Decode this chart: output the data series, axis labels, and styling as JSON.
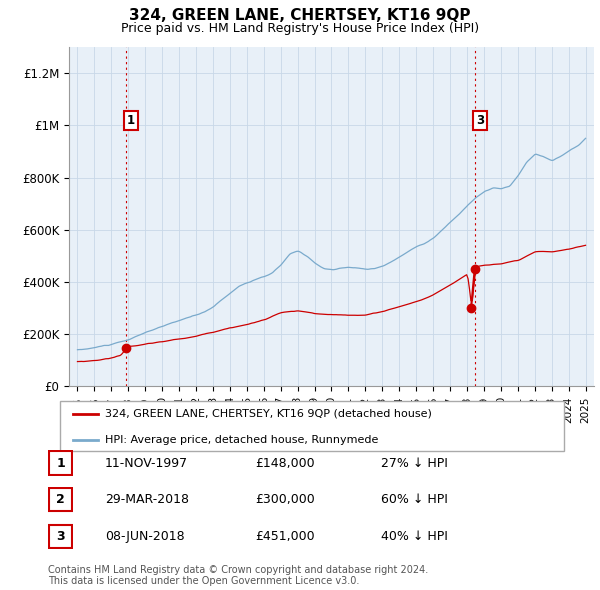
{
  "title": "324, GREEN LANE, CHERTSEY, KT16 9QP",
  "subtitle": "Price paid vs. HM Land Registry's House Price Index (HPI)",
  "legend_line1": "324, GREEN LANE, CHERTSEY, KT16 9QP (detached house)",
  "legend_line2": "HPI: Average price, detached house, Runnymede",
  "footer1": "Contains HM Land Registry data © Crown copyright and database right 2024.",
  "footer2": "This data is licensed under the Open Government Licence v3.0.",
  "table": [
    {
      "num": "1",
      "date": "11-NOV-1997",
      "price": "£148,000",
      "note": "27% ↓ HPI"
    },
    {
      "num": "2",
      "date": "29-MAR-2018",
      "price": "£300,000",
      "note": "60% ↓ HPI"
    },
    {
      "num": "3",
      "date": "08-JUN-2018",
      "price": "£451,000",
      "note": "40% ↓ HPI"
    }
  ],
  "sale_points": [
    {
      "year": 1997.87,
      "price": 148000,
      "label": "1"
    },
    {
      "year": 2018.24,
      "price": 300000,
      "label": "2"
    },
    {
      "year": 2018.46,
      "price": 451000,
      "label": "3"
    }
  ],
  "red_line_color": "#cc0000",
  "blue_line_color": "#7aaacc",
  "bg_color": "#e8f0f8",
  "sale_dot_color": "#cc0000",
  "grid_color": "#c8d8e8",
  "dashed_color": "#cc0000",
  "ylim": [
    0,
    1300000
  ],
  "yticks": [
    0,
    200000,
    400000,
    600000,
    800000,
    1000000,
    1200000
  ],
  "ytick_labels": [
    "£0",
    "£200K",
    "£400K",
    "£600K",
    "£800K",
    "£1M",
    "£1.2M"
  ],
  "xlim_start": 1994.5,
  "xlim_end": 2025.5,
  "hpi_anchor_years": [
    1995.0,
    1995.5,
    1996.0,
    1996.5,
    1997.0,
    1997.5,
    1998.0,
    1998.5,
    1999.0,
    1999.5,
    2000.0,
    2000.5,
    2001.0,
    2001.5,
    2002.0,
    2002.5,
    2003.0,
    2003.5,
    2004.0,
    2004.5,
    2005.0,
    2005.5,
    2006.0,
    2006.5,
    2007.0,
    2007.5,
    2008.0,
    2008.5,
    2009.0,
    2009.5,
    2010.0,
    2010.5,
    2011.0,
    2011.5,
    2012.0,
    2012.5,
    2013.0,
    2013.5,
    2014.0,
    2014.5,
    2015.0,
    2015.5,
    2016.0,
    2016.5,
    2017.0,
    2017.5,
    2018.0,
    2018.5,
    2019.0,
    2019.5,
    2020.0,
    2020.5,
    2021.0,
    2021.5,
    2022.0,
    2022.5,
    2023.0,
    2023.5,
    2024.0,
    2024.5,
    2025.0
  ],
  "hpi_anchor_vals": [
    140000,
    143000,
    148000,
    155000,
    160000,
    168000,
    175000,
    190000,
    205000,
    215000,
    225000,
    238000,
    248000,
    258000,
    268000,
    282000,
    300000,
    330000,
    355000,
    380000,
    395000,
    405000,
    415000,
    430000,
    460000,
    500000,
    510000,
    490000,
    465000,
    445000,
    440000,
    445000,
    448000,
    445000,
    440000,
    445000,
    455000,
    470000,
    490000,
    510000,
    530000,
    545000,
    565000,
    595000,
    625000,
    655000,
    690000,
    720000,
    740000,
    755000,
    750000,
    760000,
    800000,
    850000,
    880000,
    870000,
    855000,
    870000,
    890000,
    910000,
    940000
  ],
  "prop_anchor_years": [
    1995.0,
    1995.5,
    1996.0,
    1996.5,
    1997.0,
    1997.5,
    1997.87,
    1998.0,
    1999.0,
    2000.0,
    2001.0,
    2002.0,
    2003.0,
    2004.0,
    2005.0,
    2006.0,
    2007.0,
    2008.0,
    2009.0,
    2010.0,
    2011.0,
    2012.0,
    2013.0,
    2014.0,
    2015.0,
    2016.0,
    2017.0,
    2018.0,
    2018.24,
    2018.46,
    2018.6,
    2019.0,
    2020.0,
    2021.0,
    2022.0,
    2023.0,
    2024.0,
    2025.0
  ],
  "prop_anchor_vals": [
    95000,
    97000,
    100000,
    105000,
    110000,
    120000,
    148000,
    155000,
    163000,
    172000,
    182000,
    192000,
    210000,
    228000,
    240000,
    258000,
    285000,
    290000,
    278000,
    272000,
    270000,
    272000,
    285000,
    305000,
    325000,
    350000,
    390000,
    430000,
    300000,
    451000,
    460000,
    465000,
    470000,
    480000,
    510000,
    510000,
    520000,
    535000
  ]
}
